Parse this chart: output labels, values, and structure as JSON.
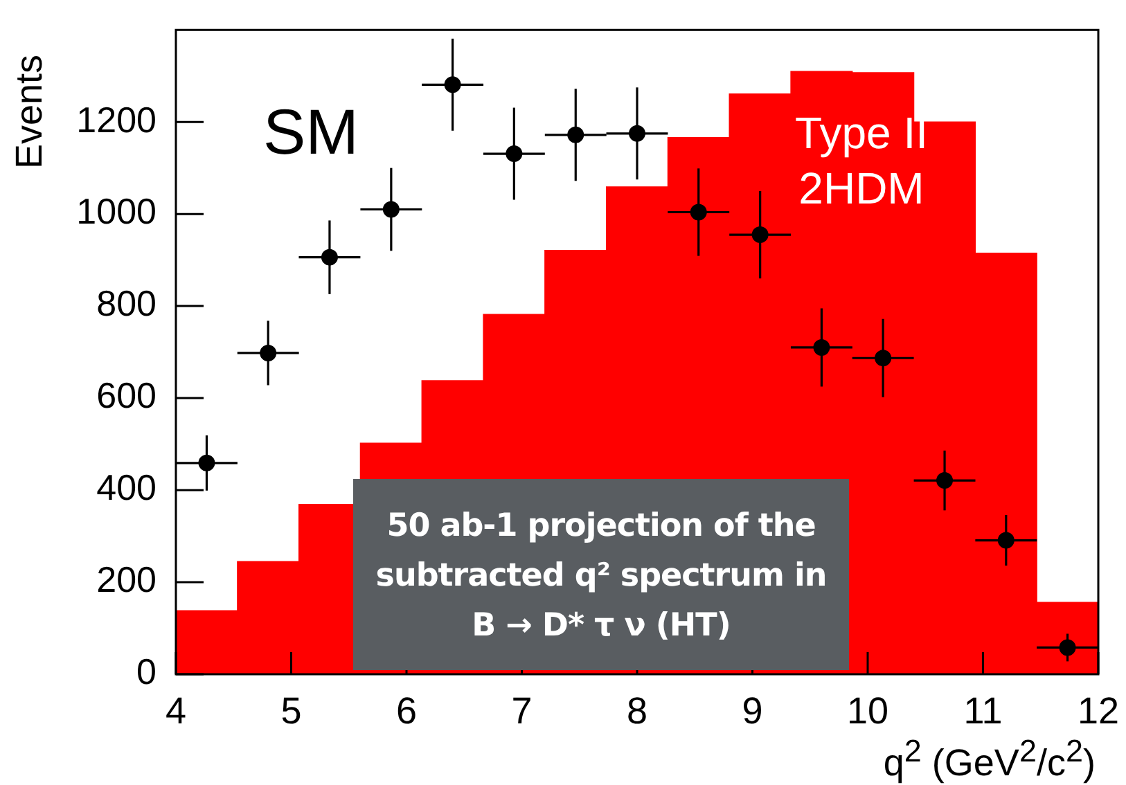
{
  "chart_data": {
    "type": "histogram",
    "xlabel": "q$^{2}$ (GeV$^{2}$/c$^{2}$)",
    "ylabel": "Events",
    "xlim": [
      4,
      12
    ],
    "xticks": [
      4,
      5,
      6,
      7,
      8,
      9,
      10,
      11,
      12
    ],
    "ylim": [
      0,
      1400
    ],
    "yticks": [
      0,
      200,
      400,
      600,
      800,
      1000,
      1200
    ],
    "grid": false,
    "legend": "top left",
    "series": [
      {
        "type": "histogram",
        "name": "Type II 2HDM",
        "color": "#ff0000",
        "bins": [
          4,
          4.533,
          5.067,
          5.6,
          6.133,
          6.667,
          7.2,
          7.733,
          8.267,
          8.8,
          9.333,
          9.867,
          10.4,
          10.933,
          11.467,
          12
        ],
        "values": [
          138,
          245,
          369,
          502,
          638,
          782,
          921,
          1059,
          1166,
          1261,
          1310,
          1307,
          1200,
          915,
          156
        ]
      },
      {
        "type": "scatter",
        "name": "SM",
        "color": "#000000",
        "marker": "circle",
        "x": [
          4.267,
          4.8,
          5.333,
          5.867,
          6.4,
          6.933,
          7.467,
          8,
          8.533,
          9.067,
          9.6,
          10.133,
          10.667,
          11.2,
          11.733
        ],
        "values": [
          459,
          698,
          906,
          1010,
          1281,
          1131,
          1172,
          1175,
          1004,
          955,
          710,
          687,
          421,
          291,
          58
        ],
        "errors": [
          60,
          70,
          80,
          90,
          100,
          100,
          100,
          100,
          95,
          95,
          85,
          85,
          65,
          55,
          30
        ],
        "xerrors": [
          0.267,
          0.267,
          0.267,
          0.267,
          0.267,
          0.267,
          0.267,
          0.267,
          0.267,
          0.267,
          0.267,
          0.267,
          0.267,
          0.267,
          0.267
        ]
      }
    ],
    "annotations": [
      "50 ab-1 projection of the subtracted q² spectrum in B → D* τ ν (HT)"
    ]
  }
}
